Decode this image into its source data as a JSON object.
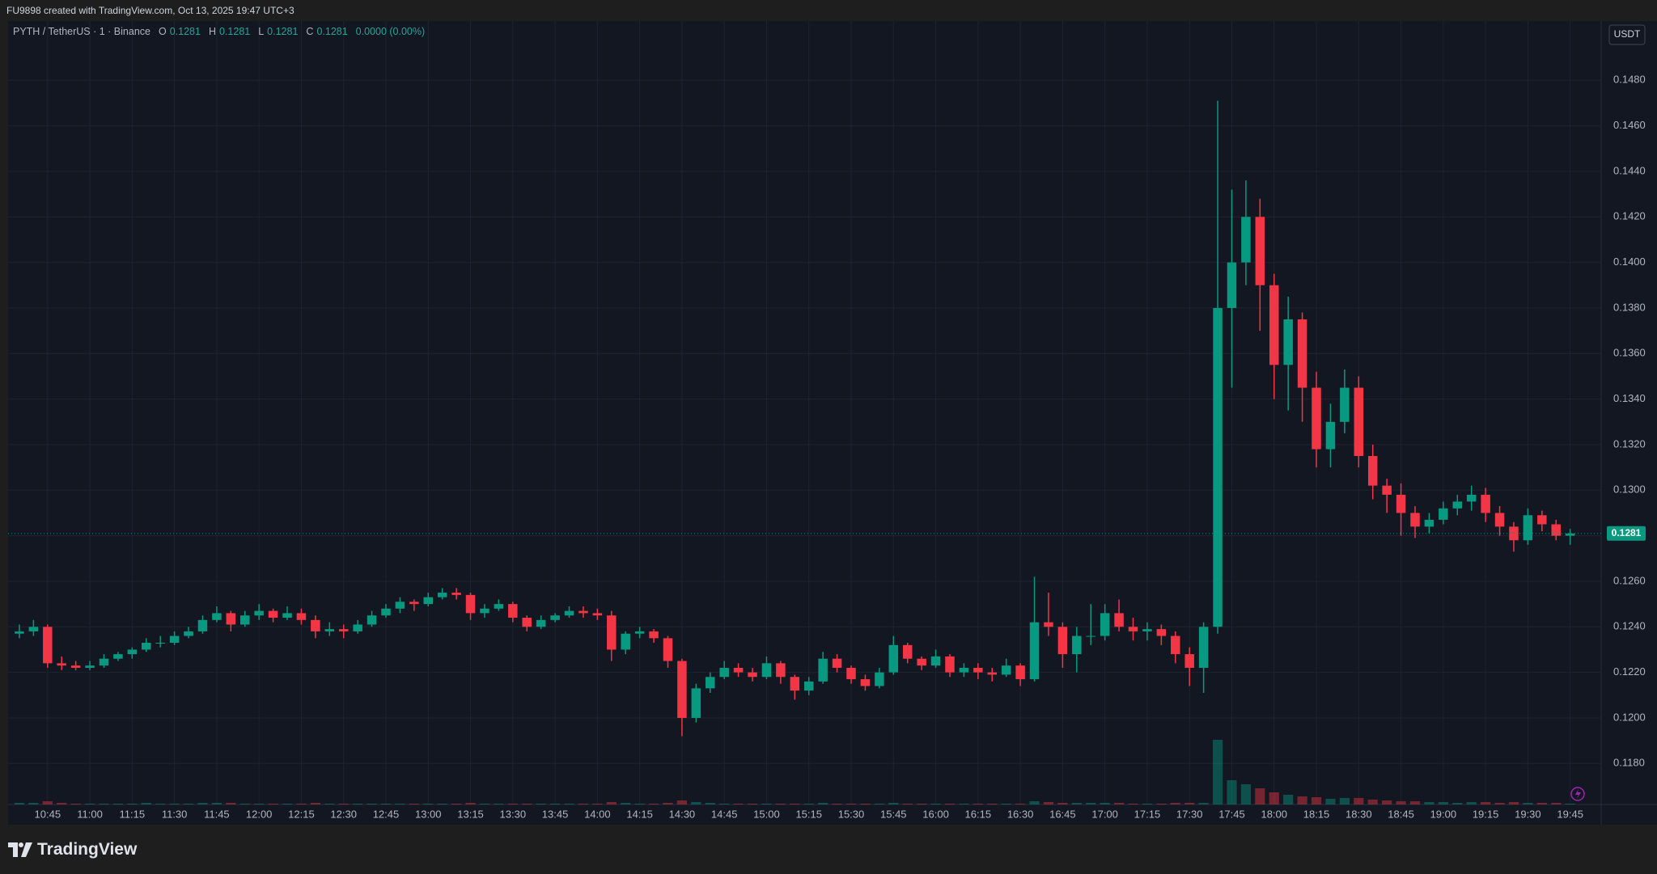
{
  "header": "FU9898 created with TradingView.com, Oct 13, 2025 19:47 UTC+3",
  "footer": "TradingView",
  "chart_data": {
    "type": "candlestick",
    "legend": {
      "symbol": "PYTH / TetherUS · 1 · Binance",
      "o_label": "O",
      "o": "0.1281",
      "h_label": "H",
      "h": "0.1281",
      "l_label": "L",
      "l": "0.1281",
      "c_label": "C",
      "c": "0.1281",
      "change": "0.0000 (0.00%)"
    },
    "currency": "USDT",
    "up_color": "#089981",
    "down_color": "#f23645",
    "grid": true,
    "x": [
      635,
      640,
      645,
      650,
      655,
      660,
      665,
      670,
      675,
      680,
      685,
      690,
      695,
      700,
      705,
      710,
      715,
      720,
      725,
      730,
      735,
      740,
      745,
      750,
      755,
      760,
      765,
      770,
      775,
      780,
      785,
      790,
      795,
      800,
      805,
      810,
      815,
      820,
      825,
      830,
      835,
      840,
      845,
      850,
      855,
      860,
      865,
      870,
      875,
      880,
      885,
      890,
      895,
      900,
      905,
      910,
      915,
      920,
      925,
      930,
      935,
      940,
      945,
      950,
      955,
      960,
      965,
      970,
      975,
      980,
      985,
      990,
      995,
      1000,
      1005,
      1010,
      1015,
      1020,
      1025,
      1030,
      1035,
      1040,
      1045,
      1050,
      1055,
      1060,
      1065,
      1070,
      1075,
      1080,
      1085,
      1090,
      1095,
      1100,
      1105,
      1110,
      1115,
      1120,
      1125,
      1130,
      1135,
      1140,
      1145,
      1150,
      1155,
      1160,
      1165,
      1170,
      1175,
      1180,
      1185
    ],
    "ohlc": [
      [
        0.1237,
        0.1241,
        0.1235,
        0.1238
      ],
      [
        0.1238,
        0.1243,
        0.1236,
        0.124
      ],
      [
        0.124,
        0.1241,
        0.1222,
        0.1224
      ],
      [
        0.1224,
        0.1227,
        0.1221,
        0.1223
      ],
      [
        0.1223,
        0.1225,
        0.1221,
        0.1222
      ],
      [
        0.1222,
        0.1225,
        0.1221,
        0.1223
      ],
      [
        0.1223,
        0.1228,
        0.1222,
        0.1226
      ],
      [
        0.1226,
        0.1229,
        0.1225,
        0.1228
      ],
      [
        0.1228,
        0.1231,
        0.1226,
        0.123
      ],
      [
        0.123,
        0.1235,
        0.1229,
        0.1233
      ],
      [
        0.1233,
        0.1236,
        0.1231,
        0.1233
      ],
      [
        0.1233,
        0.1238,
        0.1232,
        0.1236
      ],
      [
        0.1236,
        0.124,
        0.1235,
        0.1238
      ],
      [
        0.1238,
        0.1245,
        0.1237,
        0.1243
      ],
      [
        0.1243,
        0.1249,
        0.1242,
        0.1246
      ],
      [
        0.1246,
        0.1247,
        0.1238,
        0.1241
      ],
      [
        0.1241,
        0.1247,
        0.124,
        0.1245
      ],
      [
        0.1245,
        0.125,
        0.1243,
        0.1247
      ],
      [
        0.1247,
        0.1248,
        0.1242,
        0.1244
      ],
      [
        0.1244,
        0.1249,
        0.1243,
        0.1246
      ],
      [
        0.1246,
        0.1248,
        0.1241,
        0.1243
      ],
      [
        0.1243,
        0.1245,
        0.1235,
        0.1238
      ],
      [
        0.1238,
        0.1242,
        0.1236,
        0.1239
      ],
      [
        0.1239,
        0.1241,
        0.1235,
        0.1238
      ],
      [
        0.1238,
        0.1243,
        0.1237,
        0.1241
      ],
      [
        0.1241,
        0.1247,
        0.124,
        0.1245
      ],
      [
        0.1245,
        0.125,
        0.1244,
        0.1248
      ],
      [
        0.1248,
        0.1253,
        0.1246,
        0.1251
      ],
      [
        0.1251,
        0.1252,
        0.1247,
        0.125
      ],
      [
        0.125,
        0.1255,
        0.1249,
        0.1253
      ],
      [
        0.1253,
        0.1257,
        0.1252,
        0.1255
      ],
      [
        0.1255,
        0.1257,
        0.1252,
        0.1254
      ],
      [
        0.1254,
        0.1255,
        0.1243,
        0.1246
      ],
      [
        0.1246,
        0.125,
        0.1244,
        0.1248
      ],
      [
        0.1248,
        0.1252,
        0.1247,
        0.125
      ],
      [
        0.125,
        0.1251,
        0.1242,
        0.1244
      ],
      [
        0.1244,
        0.1245,
        0.1238,
        0.124
      ],
      [
        0.124,
        0.1245,
        0.1239,
        0.1243
      ],
      [
        0.1243,
        0.1246,
        0.1242,
        0.1245
      ],
      [
        0.1245,
        0.1249,
        0.1244,
        0.1247
      ],
      [
        0.1247,
        0.1249,
        0.1244,
        0.1246
      ],
      [
        0.1246,
        0.1248,
        0.1243,
        0.1245
      ],
      [
        0.1245,
        0.1247,
        0.1225,
        0.123
      ],
      [
        0.123,
        0.1238,
        0.1228,
        0.1237
      ],
      [
        0.1237,
        0.124,
        0.1235,
        0.1238
      ],
      [
        0.1238,
        0.1239,
        0.1233,
        0.1235
      ],
      [
        0.1235,
        0.1236,
        0.1222,
        0.1225
      ],
      [
        0.1225,
        0.1226,
        0.1192,
        0.12
      ],
      [
        0.12,
        0.1215,
        0.1198,
        0.1213
      ],
      [
        0.1213,
        0.122,
        0.1211,
        0.1218
      ],
      [
        0.1218,
        0.1225,
        0.1217,
        0.1222
      ],
      [
        0.1222,
        0.1224,
        0.1218,
        0.122
      ],
      [
        0.122,
        0.1222,
        0.1216,
        0.1218
      ],
      [
        0.1218,
        0.1227,
        0.1217,
        0.1224
      ],
      [
        0.1224,
        0.1225,
        0.1215,
        0.1218
      ],
      [
        0.1218,
        0.1219,
        0.1208,
        0.1212
      ],
      [
        0.1212,
        0.1218,
        0.121,
        0.1216
      ],
      [
        0.1216,
        0.1229,
        0.1215,
        0.1226
      ],
      [
        0.1226,
        0.1228,
        0.122,
        0.1222
      ],
      [
        0.1222,
        0.1223,
        0.1215,
        0.1217
      ],
      [
        0.1217,
        0.1219,
        0.1212,
        0.1214
      ],
      [
        0.1214,
        0.1222,
        0.1213,
        0.122
      ],
      [
        0.122,
        0.1236,
        0.1219,
        0.1232
      ],
      [
        0.1232,
        0.1233,
        0.1224,
        0.1226
      ],
      [
        0.1226,
        0.1227,
        0.1221,
        0.1223
      ],
      [
        0.1223,
        0.123,
        0.1222,
        0.1227
      ],
      [
        0.1227,
        0.1228,
        0.1218,
        0.122
      ],
      [
        0.122,
        0.1224,
        0.1218,
        0.1222
      ],
      [
        0.1222,
        0.1224,
        0.1217,
        0.122
      ],
      [
        0.122,
        0.1222,
        0.1216,
        0.1219
      ],
      [
        0.1219,
        0.1226,
        0.1218,
        0.1223
      ],
      [
        0.1223,
        0.1224,
        0.1214,
        0.1217
      ],
      [
        0.1217,
        0.1262,
        0.1216,
        0.1242
      ],
      [
        0.1242,
        0.1255,
        0.1236,
        0.124
      ],
      [
        0.124,
        0.1242,
        0.1222,
        0.1228
      ],
      [
        0.1228,
        0.124,
        0.122,
        0.1236
      ],
      [
        0.1236,
        0.125,
        0.1232,
        0.1236
      ],
      [
        0.1236,
        0.125,
        0.1234,
        0.1246
      ],
      [
        0.1246,
        0.1252,
        0.1238,
        0.124
      ],
      [
        0.124,
        0.1244,
        0.1234,
        0.1238
      ],
      [
        0.1238,
        0.1242,
        0.1234,
        0.1239
      ],
      [
        0.1239,
        0.1241,
        0.1232,
        0.1236
      ],
      [
        0.1236,
        0.1238,
        0.1224,
        0.1228
      ],
      [
        0.1228,
        0.1231,
        0.1214,
        0.1222
      ],
      [
        0.1222,
        0.1242,
        0.1211,
        0.124
      ],
      [
        0.124,
        0.1471,
        0.1237,
        0.138
      ],
      [
        0.138,
        0.1432,
        0.1345,
        0.14
      ],
      [
        0.14,
        0.1436,
        0.139,
        0.142
      ],
      [
        0.142,
        0.1428,
        0.137,
        0.139
      ],
      [
        0.139,
        0.1395,
        0.134,
        0.1355
      ],
      [
        0.1355,
        0.1385,
        0.1335,
        0.1375
      ],
      [
        0.1375,
        0.1378,
        0.133,
        0.1345
      ],
      [
        0.1345,
        0.1352,
        0.131,
        0.1318
      ],
      [
        0.1318,
        0.1338,
        0.131,
        0.133
      ],
      [
        0.133,
        0.1353,
        0.1325,
        0.1345
      ],
      [
        0.1345,
        0.135,
        0.131,
        0.1315
      ],
      [
        0.1315,
        0.132,
        0.1296,
        0.1302
      ],
      [
        0.1302,
        0.1305,
        0.129,
        0.1298
      ],
      [
        0.1298,
        0.1303,
        0.128,
        0.129
      ],
      [
        0.129,
        0.1293,
        0.1279,
        0.1284
      ],
      [
        0.1284,
        0.129,
        0.1281,
        0.1287
      ],
      [
        0.1287,
        0.1295,
        0.1285,
        0.1292
      ],
      [
        0.1292,
        0.1298,
        0.1289,
        0.1295
      ],
      [
        0.1295,
        0.1302,
        0.1291,
        0.1298
      ],
      [
        0.1298,
        0.1301,
        0.1286,
        0.129
      ],
      [
        0.129,
        0.1293,
        0.128,
        0.1284
      ],
      [
        0.1284,
        0.1286,
        0.1273,
        0.1278
      ],
      [
        0.1278,
        0.1292,
        0.1276,
        0.1289
      ],
      [
        0.1289,
        0.1291,
        0.1282,
        0.1285
      ],
      [
        0.1285,
        0.1287,
        0.1278,
        0.128
      ],
      [
        0.128,
        0.1283,
        0.1276,
        0.1281
      ]
    ],
    "volume": [
      2,
      2,
      4,
      2,
      1,
      1,
      1,
      1,
      1,
      2,
      1,
      1,
      1,
      2,
      2,
      2,
      1,
      1,
      1,
      1,
      1,
      2,
      1,
      1,
      1,
      1,
      1,
      1,
      1,
      1,
      1,
      1,
      2,
      1,
      1,
      1,
      1,
      1,
      1,
      1,
      1,
      1,
      3,
      2,
      1,
      1,
      2,
      5,
      3,
      2,
      1,
      1,
      1,
      1,
      1,
      1,
      1,
      2,
      1,
      1,
      1,
      1,
      2,
      1,
      1,
      1,
      1,
      1,
      1,
      1,
      1,
      1,
      4,
      3,
      2,
      2,
      2,
      2,
      2,
      1,
      1,
      1,
      2,
      2,
      2,
      80,
      30,
      25,
      20,
      15,
      12,
      10,
      9,
      7,
      8,
      8,
      6,
      5,
      4,
      4,
      3,
      3,
      2,
      3,
      3,
      2,
      3,
      2,
      2,
      2,
      1
    ],
    "vlim": [
      0,
      100
    ],
    "last_price": {
      "value": 0.1281,
      "label": "0.1281"
    },
    "xlim": [
      631,
      1196
    ],
    "ylim": [
      0.1162,
      0.1506
    ],
    "yticks": [
      {
        "value": 0.118,
        "label": "0.1180"
      },
      {
        "value": 0.12,
        "label": "0.1200"
      },
      {
        "value": 0.122,
        "label": "0.1220"
      },
      {
        "value": 0.124,
        "label": "0.1240"
      },
      {
        "value": 0.126,
        "label": "0.1260"
      },
      {
        "value": 0.128,
        "label": "0.1280"
      },
      {
        "value": 0.13,
        "label": "0.1300"
      },
      {
        "value": 0.132,
        "label": "0.1320"
      },
      {
        "value": 0.134,
        "label": "0.1340"
      },
      {
        "value": 0.136,
        "label": "0.1360"
      },
      {
        "value": 0.138,
        "label": "0.1380"
      },
      {
        "value": 0.14,
        "label": "0.1400"
      },
      {
        "value": 0.142,
        "label": "0.1420"
      },
      {
        "value": 0.144,
        "label": "0.1440"
      },
      {
        "value": 0.146,
        "label": "0.1460"
      },
      {
        "value": 0.148,
        "label": "0.1480"
      }
    ],
    "xticks": [
      {
        "value": 645,
        "label": "10:45"
      },
      {
        "value": 660,
        "label": "11:00"
      },
      {
        "value": 675,
        "label": "11:15"
      },
      {
        "value": 690,
        "label": "11:30"
      },
      {
        "value": 705,
        "label": "11:45"
      },
      {
        "value": 720,
        "label": "12:00"
      },
      {
        "value": 735,
        "label": "12:15"
      },
      {
        "value": 750,
        "label": "12:30"
      },
      {
        "value": 765,
        "label": "12:45"
      },
      {
        "value": 780,
        "label": "13:00"
      },
      {
        "value": 795,
        "label": "13:15"
      },
      {
        "value": 810,
        "label": "13:30"
      },
      {
        "value": 825,
        "label": "13:45"
      },
      {
        "value": 840,
        "label": "14:00"
      },
      {
        "value": 855,
        "label": "14:15"
      },
      {
        "value": 870,
        "label": "14:30"
      },
      {
        "value": 885,
        "label": "14:45"
      },
      {
        "value": 900,
        "label": "15:00"
      },
      {
        "value": 915,
        "label": "15:15"
      },
      {
        "value": 930,
        "label": "15:30"
      },
      {
        "value": 945,
        "label": "15:45"
      },
      {
        "value": 960,
        "label": "16:00"
      },
      {
        "value": 975,
        "label": "16:15"
      },
      {
        "value": 990,
        "label": "16:30"
      },
      {
        "value": 1005,
        "label": "16:45"
      },
      {
        "value": 1020,
        "label": "17:00"
      },
      {
        "value": 1035,
        "label": "17:15"
      },
      {
        "value": 1050,
        "label": "17:30"
      },
      {
        "value": 1065,
        "label": "17:45"
      },
      {
        "value": 1080,
        "label": "18:00"
      },
      {
        "value": 1095,
        "label": "18:15"
      },
      {
        "value": 1110,
        "label": "18:30"
      },
      {
        "value": 1125,
        "label": "18:45"
      },
      {
        "value": 1140,
        "label": "19:00"
      },
      {
        "value": 1155,
        "label": "19:15"
      },
      {
        "value": 1170,
        "label": "19:30"
      },
      {
        "value": 1185,
        "label": "19:45"
      }
    ]
  }
}
